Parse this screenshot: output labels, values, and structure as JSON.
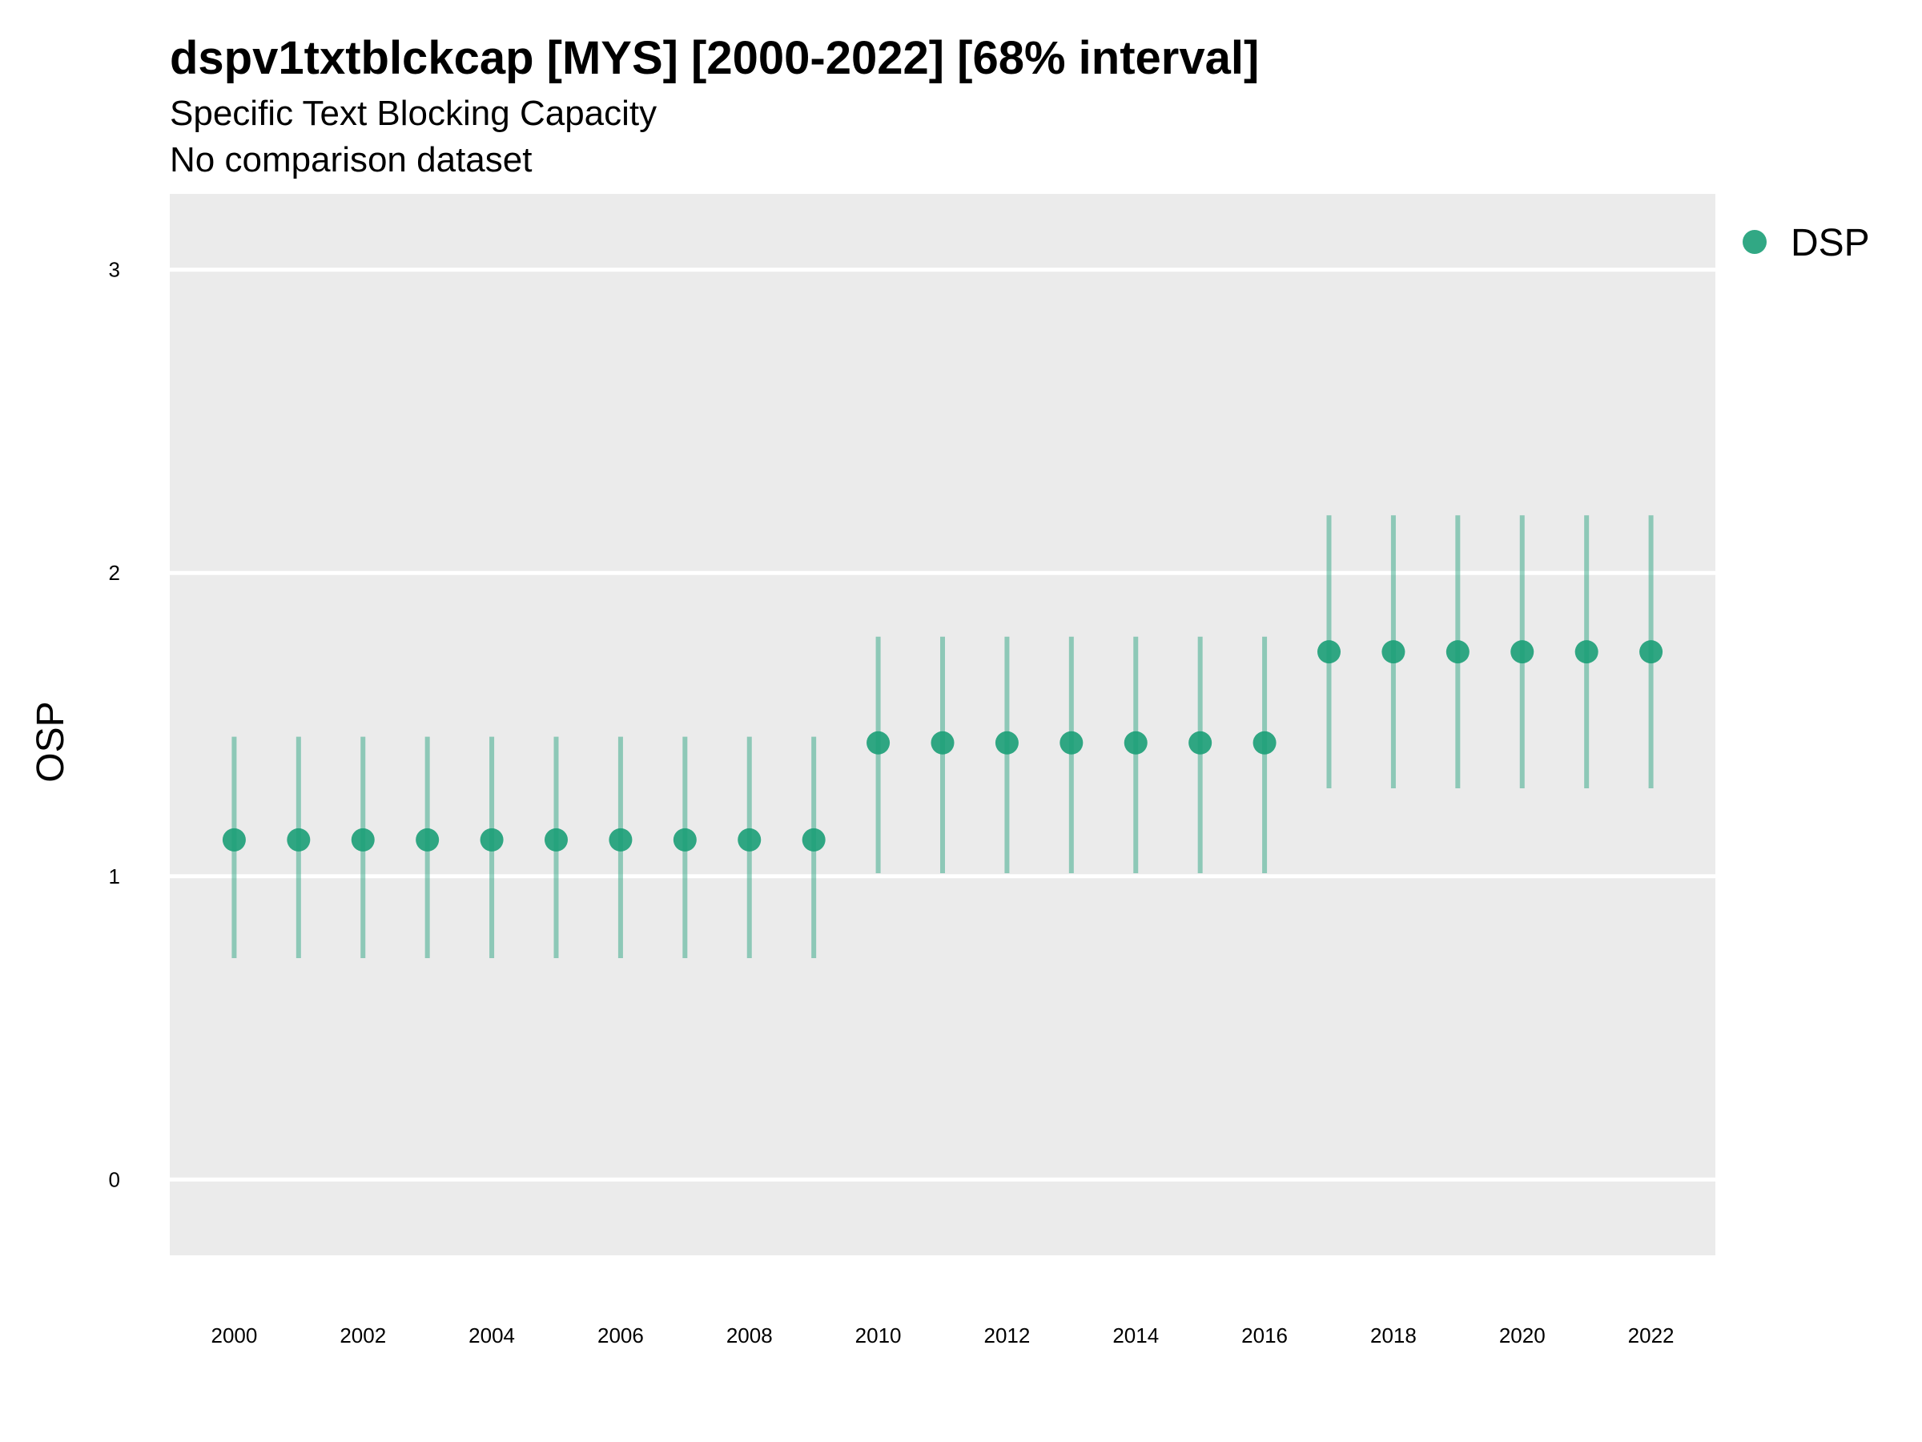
{
  "chart_data": {
    "type": "scatter",
    "title": "dspv1txtblckcap [MYS] [2000-2022] [68% interval]",
    "subtitle": "Specific Text Blocking Capacity",
    "subtitle2": "No comparison dataset",
    "xlabel": "",
    "ylabel": "OSP",
    "xlim": [
      1999,
      2023
    ],
    "ylim": [
      -0.25,
      3.25
    ],
    "grid": true,
    "y_ticks": [
      "0",
      "1",
      "2",
      "3"
    ],
    "x_ticks": [
      "2000",
      "2002",
      "2004",
      "2006",
      "2008",
      "2010",
      "2012",
      "2014",
      "2016",
      "2018",
      "2020",
      "2022"
    ],
    "legend_position": "top-right",
    "series": [
      {
        "name": "DSP",
        "color": "#1b9e77",
        "points": [
          {
            "x": 2000,
            "y": 1.12,
            "lo": 0.73,
            "hi": 1.46
          },
          {
            "x": 2001,
            "y": 1.12,
            "lo": 0.73,
            "hi": 1.46
          },
          {
            "x": 2002,
            "y": 1.12,
            "lo": 0.73,
            "hi": 1.46
          },
          {
            "x": 2003,
            "y": 1.12,
            "lo": 0.73,
            "hi": 1.46
          },
          {
            "x": 2004,
            "y": 1.12,
            "lo": 0.73,
            "hi": 1.46
          },
          {
            "x": 2005,
            "y": 1.12,
            "lo": 0.73,
            "hi": 1.46
          },
          {
            "x": 2006,
            "y": 1.12,
            "lo": 0.73,
            "hi": 1.46
          },
          {
            "x": 2007,
            "y": 1.12,
            "lo": 0.73,
            "hi": 1.46
          },
          {
            "x": 2008,
            "y": 1.12,
            "lo": 0.73,
            "hi": 1.46
          },
          {
            "x": 2009,
            "y": 1.12,
            "lo": 0.73,
            "hi": 1.46
          },
          {
            "x": 2010,
            "y": 1.44,
            "lo": 1.01,
            "hi": 1.79
          },
          {
            "x": 2011,
            "y": 1.44,
            "lo": 1.01,
            "hi": 1.79
          },
          {
            "x": 2012,
            "y": 1.44,
            "lo": 1.01,
            "hi": 1.79
          },
          {
            "x": 2013,
            "y": 1.44,
            "lo": 1.01,
            "hi": 1.79
          },
          {
            "x": 2014,
            "y": 1.44,
            "lo": 1.01,
            "hi": 1.79
          },
          {
            "x": 2015,
            "y": 1.44,
            "lo": 1.01,
            "hi": 1.79
          },
          {
            "x": 2016,
            "y": 1.44,
            "lo": 1.01,
            "hi": 1.79
          },
          {
            "x": 2017,
            "y": 1.74,
            "lo": 1.29,
            "hi": 2.19
          },
          {
            "x": 2018,
            "y": 1.74,
            "lo": 1.29,
            "hi": 2.19
          },
          {
            "x": 2019,
            "y": 1.74,
            "lo": 1.29,
            "hi": 2.19
          },
          {
            "x": 2020,
            "y": 1.74,
            "lo": 1.29,
            "hi": 2.19
          },
          {
            "x": 2021,
            "y": 1.74,
            "lo": 1.29,
            "hi": 2.19
          },
          {
            "x": 2022,
            "y": 1.74,
            "lo": 1.29,
            "hi": 2.19
          }
        ]
      }
    ]
  }
}
